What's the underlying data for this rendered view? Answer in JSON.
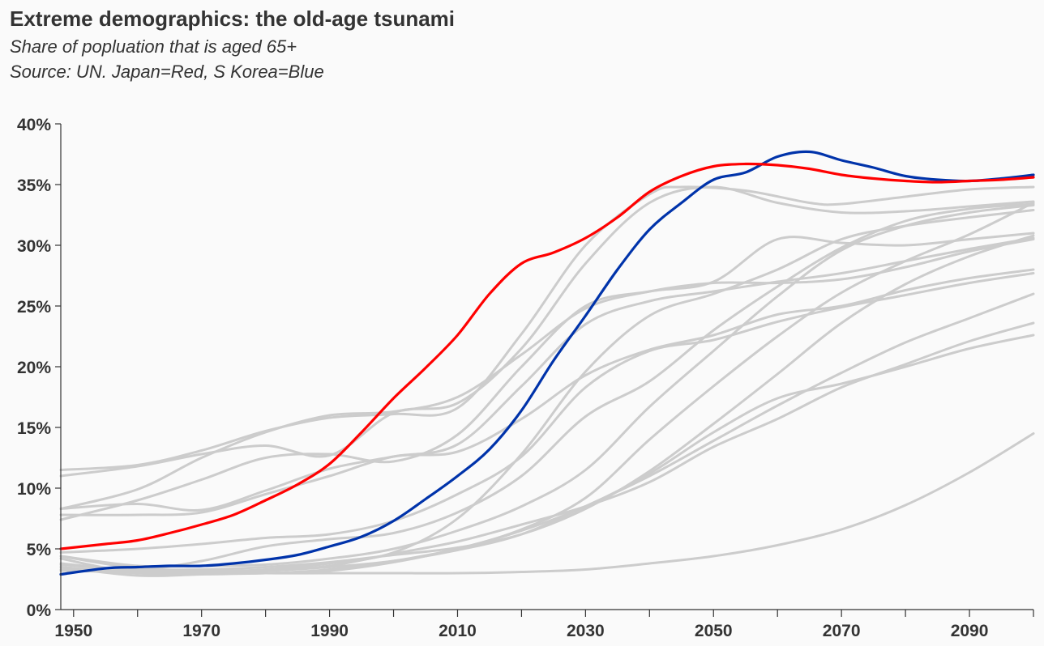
{
  "header": {
    "title": "Extreme demographics: the old-age tsunami",
    "subtitle": "Share of popluation that is aged 65+",
    "source": "Source: UN. Japan=Red, S Korea=Blue"
  },
  "colors": {
    "background": "#fafafa",
    "japan": "#ff0000",
    "korea": "#0033aa",
    "other": "#cccccc",
    "axis": "#333333"
  },
  "chart_data": {
    "type": "line",
    "title": "Extreme demographics: the old-age tsunami",
    "subtitle": "Share of popluation that is aged 65+",
    "note": "Source: UN. Japan=Red, S Korea=Blue",
    "xlabel": "",
    "ylabel": "",
    "xlim": [
      1948,
      2100
    ],
    "ylim": [
      0,
      40
    ],
    "x_ticks": [
      1950,
      1970,
      1990,
      2010,
      2030,
      2050,
      2070,
      2090
    ],
    "x_minor_ticks": [
      1960,
      1980,
      2000,
      2020,
      2040,
      2060,
      2080,
      2100
    ],
    "y_ticks": [
      0,
      5,
      10,
      15,
      20,
      25,
      30,
      35,
      40
    ],
    "y_tick_labels": [
      "0%",
      "5%",
      "10%",
      "15%",
      "20%",
      "25%",
      "30%",
      "35%",
      "40%"
    ],
    "grid": false,
    "legend": "none",
    "background_series": [
      {
        "x": [
          1948,
          1960,
          1970,
          1980,
          1990,
          2000,
          2010,
          2020,
          2030,
          2040,
          2045,
          2055,
          2065,
          2070,
          2080,
          2090,
          2100
        ],
        "values": [
          11.5,
          11.9,
          13.1,
          14.7,
          15.8,
          16.1,
          16.6,
          22.7,
          30.0,
          34.2,
          34.8,
          34.5,
          33.5,
          33.4,
          34.0,
          34.6,
          34.8
        ]
      },
      {
        "x": [
          1948,
          1960,
          1970,
          1980,
          1990,
          2000,
          2010,
          2020,
          2030,
          2040,
          2050,
          2060,
          2070,
          2080,
          2090,
          2100
        ],
        "values": [
          11.0,
          11.8,
          12.8,
          13.5,
          12.7,
          16.2,
          17.0,
          21.5,
          28.5,
          33.5,
          34.8,
          33.5,
          32.7,
          32.8,
          33.2,
          33.6
        ]
      },
      {
        "x": [
          1948,
          1960,
          1970,
          1980,
          1990,
          2000,
          2010,
          2020,
          2030,
          2040,
          2050,
          2060,
          2070,
          2080,
          2090,
          2100
        ],
        "values": [
          8.3,
          9.9,
          12.5,
          14.6,
          16.0,
          16.3,
          17.5,
          21.0,
          24.8,
          26.2,
          26.9,
          26.9,
          27.2,
          28.2,
          29.5,
          30.5
        ]
      },
      {
        "x": [
          1948,
          1960,
          1970,
          1980,
          1990,
          2000,
          2010,
          2020,
          2030,
          2040,
          2050,
          2060,
          2070,
          2080,
          2090,
          2100
        ],
        "values": [
          8.3,
          8.7,
          8.2,
          9.8,
          11.6,
          12.6,
          13.6,
          18.4,
          23.5,
          25.4,
          26.2,
          27.0,
          27.7,
          28.7,
          29.7,
          30.6
        ]
      },
      {
        "x": [
          1948,
          1960,
          1970,
          1980,
          1990,
          2000,
          2010,
          2020,
          2030,
          2040,
          2050,
          2060,
          2070,
          2080,
          2090,
          2100
        ],
        "values": [
          7.4,
          9.0,
          10.7,
          12.5,
          12.8,
          12.2,
          14.4,
          20.0,
          25.0,
          26.2,
          27.0,
          30.5,
          30.2,
          30.0,
          30.5,
          31.0
        ]
      },
      {
        "x": [
          1948,
          1960,
          1970,
          1980,
          1990,
          2000,
          2010,
          2020,
          2030,
          2040,
          2050,
          2060,
          2070,
          2080,
          2090,
          2100
        ],
        "values": [
          7.8,
          7.8,
          8.0,
          9.5,
          11.0,
          12.6,
          13.0,
          15.7,
          19.3,
          21.4,
          22.6,
          24.3,
          25.0,
          26.3,
          27.3,
          28.0
        ]
      },
      {
        "x": [
          1948,
          1960,
          1970,
          1980,
          1990,
          2000,
          2010,
          2020,
          2030,
          2040,
          2050,
          2060,
          2070,
          2080,
          2090,
          2100
        ],
        "values": [
          4.7,
          5.0,
          5.4,
          5.9,
          6.2,
          7.3,
          9.5,
          12.6,
          18.3,
          21.3,
          22.2,
          23.7,
          24.9,
          25.9,
          26.9,
          27.7
        ]
      },
      {
        "x": [
          1948,
          1960,
          1970,
          1980,
          1990,
          2000,
          2010,
          2020,
          2030,
          2040,
          2050,
          2060,
          2070,
          2080,
          2090,
          2100
        ],
        "values": [
          3.7,
          3.3,
          4.0,
          5.2,
          5.8,
          6.3,
          8.0,
          11.0,
          15.9,
          18.8,
          23.0,
          26.6,
          29.8,
          32.0,
          33.0,
          33.4
        ]
      },
      {
        "x": [
          1948,
          1960,
          1970,
          1980,
          1990,
          2000,
          2010,
          2020,
          2030,
          2040,
          2050,
          2060,
          2070,
          2080,
          2090,
          2100
        ],
        "values": [
          4.2,
          3.0,
          3.1,
          3.3,
          3.8,
          4.7,
          7.5,
          12.8,
          19.6,
          24.2,
          26.0,
          28.0,
          30.5,
          31.6,
          32.3,
          32.9
        ]
      },
      {
        "x": [
          1948,
          1960,
          1970,
          1980,
          1990,
          2000,
          2010,
          2020,
          2030,
          2040,
          2050,
          2060,
          2070,
          2080,
          2090,
          2100
        ],
        "values": [
          4.4,
          3.6,
          3.6,
          3.7,
          4.2,
          5.0,
          6.5,
          8.5,
          11.5,
          16.7,
          21.3,
          25.8,
          29.6,
          31.6,
          32.7,
          33.3
        ]
      },
      {
        "x": [
          1948,
          1960,
          1970,
          1980,
          1990,
          2000,
          2010,
          2020,
          2030,
          2040,
          2050,
          2060,
          2070,
          2080,
          2090,
          2100
        ],
        "values": [
          4.4,
          3.4,
          3.3,
          3.5,
          3.9,
          4.5,
          5.1,
          6.2,
          8.3,
          11.4,
          15.3,
          19.4,
          23.6,
          26.8,
          29.1,
          30.8
        ]
      },
      {
        "x": [
          1948,
          1960,
          1970,
          1980,
          1990,
          2000,
          2010,
          2020,
          2030,
          2040,
          2050,
          2060,
          2070,
          2080,
          2090,
          2100
        ],
        "values": [
          3.5,
          3.0,
          3.0,
          3.0,
          3.3,
          4.0,
          5.0,
          6.6,
          9.2,
          14.0,
          18.4,
          22.5,
          26.1,
          28.7,
          30.9,
          33.5
        ]
      },
      {
        "x": [
          1948,
          1960,
          1970,
          1980,
          1990,
          2000,
          2010,
          2020,
          2030,
          2040,
          2050,
          2060,
          2070,
          2080,
          2090,
          2100
        ],
        "values": [
          3.8,
          3.2,
          3.2,
          3.2,
          3.6,
          4.6,
          5.6,
          7.0,
          8.5,
          10.5,
          13.4,
          15.7,
          18.3,
          20.2,
          22.1,
          23.6
        ]
      },
      {
        "x": [
          1948,
          1960,
          1970,
          1980,
          1990,
          2000,
          2010,
          2020,
          2030,
          2040,
          2050,
          2060,
          2070,
          2080,
          2090,
          2100
        ],
        "values": [
          3.5,
          2.8,
          2.9,
          3.0,
          3.2,
          3.9,
          5.0,
          6.5,
          8.5,
          11.2,
          14.6,
          17.4,
          18.6,
          20.0,
          21.5,
          22.6
        ]
      },
      {
        "x": [
          1948,
          1960,
          1970,
          1980,
          1990,
          2000,
          2010,
          2020,
          2030,
          2040,
          2050,
          2060,
          2070,
          2080,
          2090,
          2100
        ],
        "values": [
          3.3,
          3.1,
          3.1,
          3.2,
          3.5,
          4.0,
          4.9,
          6.2,
          8.5,
          11.0,
          13.9,
          16.8,
          19.5,
          22.0,
          24.0,
          26.0
        ]
      },
      {
        "x": [
          1948,
          1960,
          1970,
          1980,
          1990,
          2000,
          2010,
          2020,
          2030,
          2040,
          2050,
          2060,
          2070,
          2080,
          2090,
          2100
        ],
        "values": [
          3.2,
          3.1,
          3.1,
          3.0,
          3.0,
          3.0,
          3.0,
          3.1,
          3.3,
          3.8,
          4.4,
          5.3,
          6.6,
          8.6,
          11.3,
          14.5
        ]
      }
    ],
    "series": [
      {
        "name": "Japan",
        "color": "#ff0000",
        "x": [
          1948,
          1955,
          1960,
          1965,
          1970,
          1975,
          1980,
          1985,
          1990,
          1995,
          2000,
          2005,
          2010,
          2015,
          2020,
          2025,
          2030,
          2035,
          2040,
          2045,
          2050,
          2055,
          2060,
          2065,
          2070,
          2075,
          2080,
          2085,
          2090,
          2095,
          2100
        ],
        "values": [
          5.0,
          5.4,
          5.7,
          6.3,
          7.0,
          7.8,
          9.0,
          10.3,
          12.0,
          14.6,
          17.4,
          19.9,
          22.6,
          26.0,
          28.5,
          29.4,
          30.6,
          32.3,
          34.4,
          35.7,
          36.5,
          36.7,
          36.6,
          36.3,
          35.8,
          35.5,
          35.3,
          35.2,
          35.3,
          35.4,
          35.6
        ]
      },
      {
        "name": "S Korea",
        "color": "#0033aa",
        "x": [
          1948,
          1955,
          1960,
          1965,
          1970,
          1975,
          1980,
          1985,
          1990,
          1995,
          2000,
          2005,
          2010,
          2015,
          2020,
          2025,
          2030,
          2035,
          2040,
          2045,
          2050,
          2055,
          2060,
          2065,
          2070,
          2075,
          2080,
          2085,
          2090,
          2095,
          2100
        ],
        "values": [
          2.9,
          3.4,
          3.5,
          3.6,
          3.6,
          3.8,
          4.1,
          4.5,
          5.2,
          6.0,
          7.3,
          9.1,
          11.0,
          13.2,
          16.4,
          20.5,
          24.2,
          28.0,
          31.3,
          33.5,
          35.4,
          36.0,
          37.3,
          37.7,
          37.0,
          36.4,
          35.7,
          35.4,
          35.3,
          35.5,
          35.8
        ]
      }
    ]
  }
}
